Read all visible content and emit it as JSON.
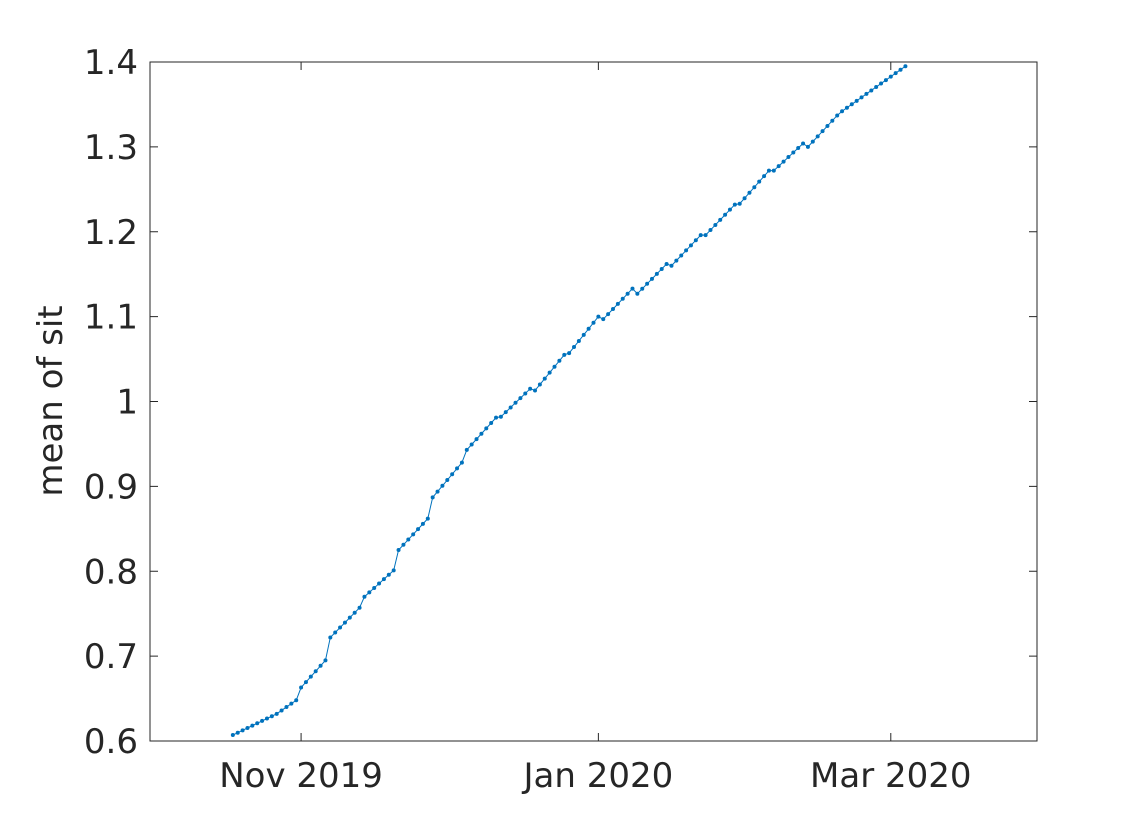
{
  "chart_data": {
    "type": "line",
    "title": "",
    "xlabel": "",
    "ylabel": "mean of sit",
    "xlim": [
      "2019-10-01",
      "2020-03-31"
    ],
    "ylim": [
      0.6,
      1.4
    ],
    "grid": false,
    "legend": "none",
    "x_ticks": [
      {
        "date": "2019-11-01",
        "label": "Nov 2019"
      },
      {
        "date": "2020-01-01",
        "label": "Jan 2020"
      },
      {
        "date": "2020-03-01",
        "label": "Mar 2020"
      }
    ],
    "y_ticks": [
      {
        "value": 0.6,
        "label": "0.6"
      },
      {
        "value": 0.7,
        "label": "0.7"
      },
      {
        "value": 0.8,
        "label": "0.8"
      },
      {
        "value": 0.9,
        "label": "0.9"
      },
      {
        "value": 1.0,
        "label": "1"
      },
      {
        "value": 1.1,
        "label": "1.1"
      },
      {
        "value": 1.2,
        "label": "1.2"
      },
      {
        "value": 1.3,
        "label": "1.3"
      },
      {
        "value": 1.4,
        "label": "1.4"
      }
    ],
    "series": [
      {
        "color": "#0072BD",
        "marker": "dot",
        "x_start": "2019-10-18",
        "x_end": "2020-03-04",
        "knots": [
          [
            "2019-10-18",
            0.607
          ],
          [
            "2019-10-27",
            0.632
          ],
          [
            "2019-10-31",
            0.648
          ],
          [
            "2019-11-01",
            0.663
          ],
          [
            "2019-11-06",
            0.695
          ],
          [
            "2019-11-07",
            0.722
          ],
          [
            "2019-11-13",
            0.757
          ],
          [
            "2019-11-14",
            0.77
          ],
          [
            "2019-11-20",
            0.801
          ],
          [
            "2019-11-21",
            0.825
          ],
          [
            "2019-11-27",
            0.862
          ],
          [
            "2019-11-28",
            0.887
          ],
          [
            "2019-12-04",
            0.928
          ],
          [
            "2019-12-05",
            0.943
          ],
          [
            "2019-12-11",
            0.981
          ],
          [
            "2019-12-12",
            0.982
          ],
          [
            "2019-12-18",
            1.015
          ],
          [
            "2019-12-19",
            1.013
          ],
          [
            "2019-12-25",
            1.055
          ],
          [
            "2019-12-26",
            1.057
          ],
          [
            "2020-01-01",
            1.1
          ],
          [
            "2020-01-02",
            1.097
          ],
          [
            "2020-01-08",
            1.133
          ],
          [
            "2020-01-09",
            1.127
          ],
          [
            "2020-01-15",
            1.162
          ],
          [
            "2020-01-16",
            1.16
          ],
          [
            "2020-01-22",
            1.196
          ],
          [
            "2020-01-23",
            1.196
          ],
          [
            "2020-01-29",
            1.232
          ],
          [
            "2020-01-30",
            1.233
          ],
          [
            "2020-02-05",
            1.272
          ],
          [
            "2020-02-06",
            1.272
          ],
          [
            "2020-02-12",
            1.304
          ],
          [
            "2020-02-13",
            1.3
          ],
          [
            "2020-02-19",
            1.337
          ],
          [
            "2020-02-20",
            1.342
          ],
          [
            "2020-03-04",
            1.395
          ]
        ]
      }
    ]
  }
}
